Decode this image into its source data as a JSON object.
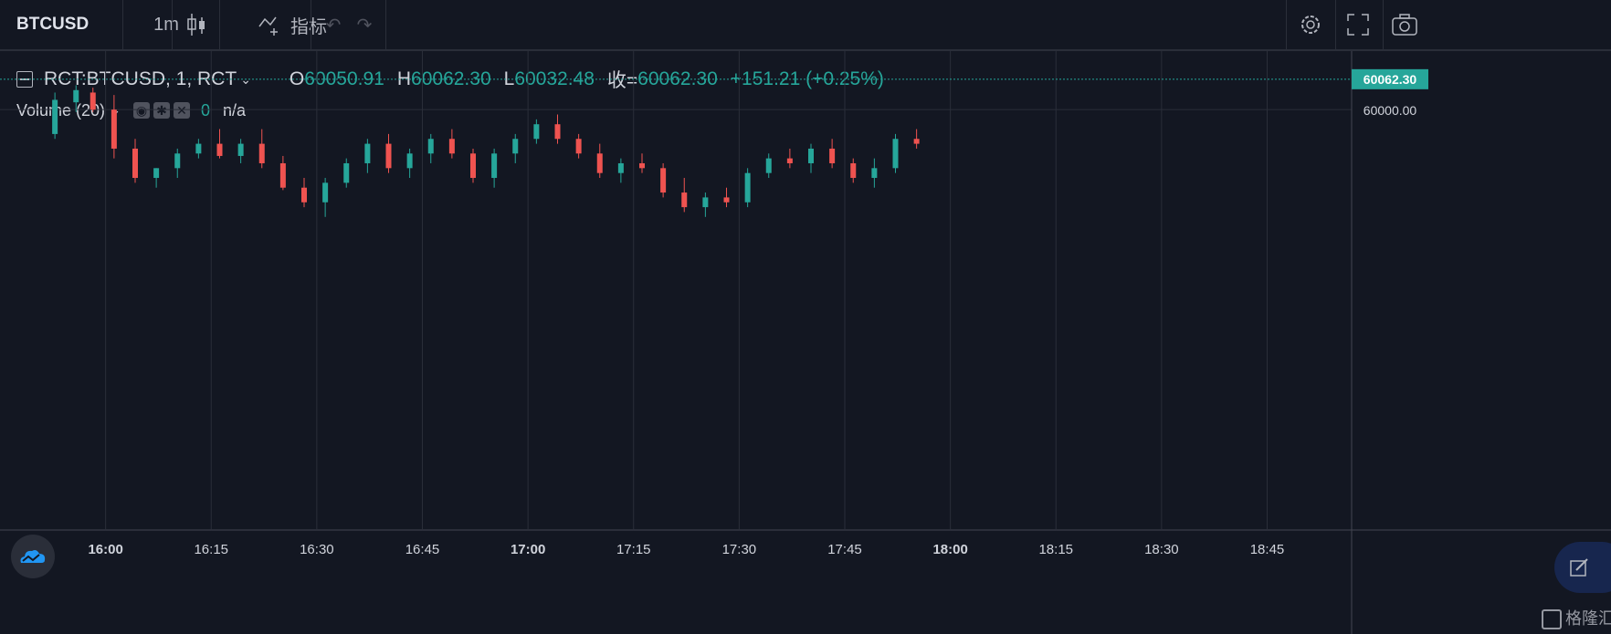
{
  "toolbar": {
    "symbol": "BTCUSD",
    "interval": "1m",
    "indicators_label": "指标"
  },
  "legend": {
    "symbol_line": "RCT:BTCUSD, 1, RCT",
    "open_label": "O",
    "open": "60050.91",
    "high_label": "H",
    "high": "60062.30",
    "low_label": "L",
    "low": "60032.48",
    "close_label": "收=",
    "close": "60062.30",
    "change": "+151.21 (+0.25%)"
  },
  "volume_legend": {
    "label": "Volume (20)",
    "value": "0",
    "na": "n/a"
  },
  "watermark": "格隆汇",
  "colors": {
    "up": "#26a69a",
    "down": "#ef5350",
    "background": "#131722",
    "grid": "#2a2e39"
  },
  "chart_data": {
    "type": "candlestick",
    "x_ticks": [
      "16:00",
      "16:15",
      "16:30",
      "16:45",
      "17:00",
      "17:15",
      "17:30",
      "17:45",
      "18:00",
      "18:15",
      "18:30",
      "18:45"
    ],
    "bold_ticks": [
      "16:00",
      "17:00",
      "18:00"
    ],
    "y_ticks": [
      "60000.00"
    ],
    "last_price": "60062.30",
    "ohlc": [
      [
        15.88,
        59950,
        60035,
        59940,
        60020
      ],
      [
        15.93,
        60015,
        60050,
        59995,
        60040
      ],
      [
        15.97,
        60035,
        60045,
        59995,
        60000
      ],
      [
        16.02,
        60000,
        60030,
        59900,
        59920
      ],
      [
        16.07,
        59920,
        59940,
        59850,
        59860
      ],
      [
        16.12,
        59860,
        59880,
        59840,
        59880
      ],
      [
        16.17,
        59880,
        59920,
        59860,
        59910
      ],
      [
        16.22,
        59910,
        59940,
        59900,
        59930
      ],
      [
        16.27,
        59930,
        59960,
        59900,
        59905
      ],
      [
        16.32,
        59905,
        59940,
        59890,
        59930
      ],
      [
        16.37,
        59930,
        59960,
        59880,
        59890
      ],
      [
        16.42,
        59890,
        59905,
        59835,
        59840
      ],
      [
        16.47,
        59840,
        59860,
        59800,
        59810
      ],
      [
        16.52,
        59810,
        59860,
        59780,
        59850
      ],
      [
        16.57,
        59850,
        59900,
        59840,
        59890
      ],
      [
        16.62,
        59890,
        59940,
        59870,
        59930
      ],
      [
        16.67,
        59930,
        59950,
        59870,
        59880
      ],
      [
        16.72,
        59880,
        59920,
        59860,
        59910
      ],
      [
        16.77,
        59910,
        59950,
        59890,
        59940
      ],
      [
        16.82,
        59940,
        59960,
        59900,
        59910
      ],
      [
        16.87,
        59910,
        59920,
        59850,
        59860
      ],
      [
        16.92,
        59860,
        59920,
        59840,
        59910
      ],
      [
        16.97,
        59910,
        59950,
        59890,
        59940
      ],
      [
        17.02,
        59940,
        59980,
        59930,
        59970
      ],
      [
        17.07,
        59970,
        59990,
        59930,
        59940
      ],
      [
        17.12,
        59940,
        59950,
        59900,
        59910
      ],
      [
        17.17,
        59910,
        59930,
        59860,
        59870
      ],
      [
        17.22,
        59870,
        59900,
        59850,
        59890
      ],
      [
        17.27,
        59890,
        59910,
        59870,
        59880
      ],
      [
        17.32,
        59880,
        59890,
        59820,
        59830
      ],
      [
        17.37,
        59830,
        59860,
        59790,
        59800
      ],
      [
        17.42,
        59800,
        59830,
        59780,
        59820
      ],
      [
        17.47,
        59820,
        59840,
        59800,
        59810
      ],
      [
        17.52,
        59810,
        59880,
        59800,
        59870
      ],
      [
        17.57,
        59870,
        59910,
        59860,
        59900
      ],
      [
        17.62,
        59900,
        59920,
        59880,
        59890
      ],
      [
        17.67,
        59890,
        59930,
        59870,
        59920
      ],
      [
        17.72,
        59920,
        59940,
        59880,
        59890
      ],
      [
        17.77,
        59890,
        59900,
        59850,
        59860
      ],
      [
        17.82,
        59860,
        59900,
        59840,
        59880
      ],
      [
        17.87,
        59880,
        59950,
        59870,
        59940
      ],
      [
        17.92,
        59940,
        59960,
        59920,
        59930
      ]
    ]
  }
}
